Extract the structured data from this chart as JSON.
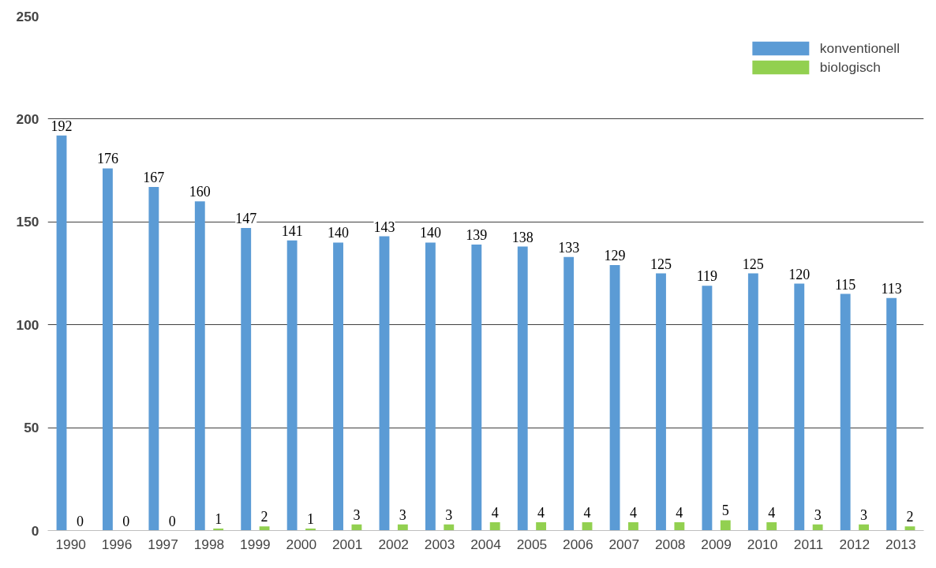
{
  "chart_data": {
    "type": "bar",
    "categories": [
      "1990",
      "1996",
      "1997",
      "1998",
      "1999",
      "2000",
      "2001",
      "2002",
      "2003",
      "2004",
      "2005",
      "2006",
      "2007",
      "2008",
      "2009",
      "2010",
      "2011",
      "2012",
      "2013"
    ],
    "series": [
      {
        "name": "konventionell",
        "color": "#5b9bd5",
        "values": [
          192,
          176,
          167,
          160,
          147,
          141,
          140,
          143,
          140,
          139,
          138,
          133,
          129,
          125,
          119,
          125,
          120,
          115,
          113
        ]
      },
      {
        "name": "biologisch",
        "color": "#92d050",
        "values": [
          0,
          0,
          0,
          1,
          2,
          1,
          3,
          3,
          3,
          4,
          4,
          4,
          4,
          4,
          5,
          4,
          3,
          3,
          2
        ]
      }
    ],
    "ylim": [
      0,
      250
    ],
    "yticks": [
      0,
      50,
      100,
      150,
      200,
      250
    ],
    "grid": "y",
    "legend": "top right",
    "data_labels": true
  }
}
